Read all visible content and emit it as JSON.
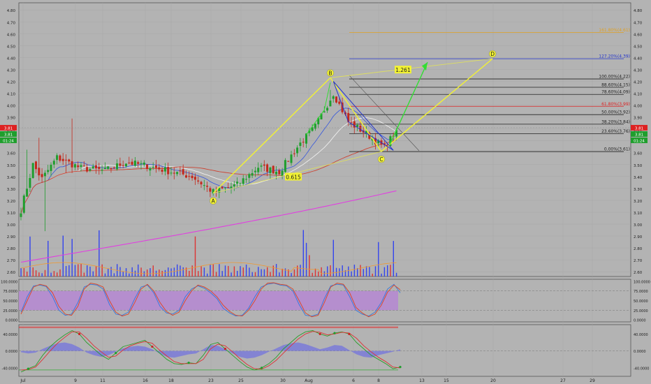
{
  "colors": {
    "background": "#b3b3b3",
    "up_candle": "#1f9e2d",
    "down_candle": "#c4281c",
    "fib_orange": "#e0a020",
    "fib_blue": "#2233cc",
    "fib_red": "#dd2222",
    "pattern_yellow": "#f2f233",
    "projection_green": "#33dd33",
    "ma_magenta": "#e040e0",
    "ma_red": "#cc4433",
    "ma_white": "#eeeeee",
    "stoch_band": "#b58ad0"
  },
  "chart_data": [
    {
      "type": "candlestick",
      "panel": "price",
      "y_ticks": [
        "4.80",
        "4.70",
        "4.60",
        "4.50",
        "4.40",
        "4.30",
        "4.20",
        "4.10",
        "4.00",
        "3.90",
        "3.80",
        "3.70",
        "3.60",
        "3.50",
        "3.40",
        "3.30",
        "3.20",
        "3.10",
        "3.00",
        "2.90",
        "2.80",
        "2.70",
        "2.60"
      ],
      "ylim": [
        2.56,
        4.86
      ],
      "x_ticks": [
        "Jul",
        "9",
        "11",
        "16",
        "18",
        "23",
        "25",
        "30",
        "Aug",
        "6",
        "8",
        "13",
        "15",
        "20",
        "27",
        "29"
      ],
      "price_labels": {
        "last": "3.81",
        "timer": "01:24"
      },
      "waypoints": [
        {
          "i": 0,
          "v": 3.12
        },
        {
          "i": 4,
          "v": 3.5
        },
        {
          "i": 7,
          "v": 3.38
        },
        {
          "i": 12,
          "v": 3.56
        },
        {
          "i": 20,
          "v": 3.47
        },
        {
          "i": 28,
          "v": 3.45
        },
        {
          "i": 35,
          "v": 3.52
        },
        {
          "i": 42,
          "v": 3.49
        },
        {
          "i": 50,
          "v": 3.44
        },
        {
          "i": 57,
          "v": 3.4
        },
        {
          "i": 64,
          "v": 3.27
        },
        {
          "i": 72,
          "v": 3.33
        },
        {
          "i": 79,
          "v": 3.48
        },
        {
          "i": 86,
          "v": 3.44
        },
        {
          "i": 93,
          "v": 3.68
        },
        {
          "i": 98,
          "v": 3.82
        },
        {
          "i": 104,
          "v": 4.1
        },
        {
          "i": 109,
          "v": 3.86
        },
        {
          "i": 115,
          "v": 3.76
        },
        {
          "i": 121,
          "v": 3.64
        },
        {
          "i": 125,
          "v": 3.79
        }
      ],
      "harmonic": {
        "points": [
          {
            "label": "A",
            "date_idx": 64,
            "value": 3.26
          },
          {
            "label": "B",
            "date_idx": 103,
            "value": 4.23
          },
          {
            "label": "C",
            "date_idx": 120,
            "value": 3.61
          },
          {
            "label": "D",
            "date_idx": 157,
            "value": 4.39
          }
        ],
        "ratios": [
          "0.615",
          "1.261"
        ]
      },
      "fib_levels": [
        {
          "label": "161.80%(4.61)",
          "value": 4.61,
          "color": "#e0a020"
        },
        {
          "label": "127.20%(4.39)",
          "value": 4.39,
          "color": "#2233cc"
        },
        {
          "label": "100.00%(4.22)",
          "value": 4.22,
          "color": "#222222"
        },
        {
          "label": "88.60%(4.15)",
          "value": 4.15,
          "color": "#222222"
        },
        {
          "label": "78.60%(4.09)",
          "value": 4.09,
          "color": "#222222"
        },
        {
          "label": "61.80%(3.99)",
          "value": 3.99,
          "color": "#dd2222"
        },
        {
          "label": "50.00%(3.92)",
          "value": 3.92,
          "color": "#222222"
        },
        {
          "label": "38.20%(3.84)",
          "value": 3.84,
          "color": "#222222"
        },
        {
          "label": "23.60%(3.76)",
          "value": 3.76,
          "color": "#222222"
        },
        {
          "label": "0.00%(3.61)",
          "value": 3.61,
          "color": "#222222"
        }
      ]
    },
    {
      "type": "line",
      "panel": "stochastic",
      "y_ticks": [
        "100.0000",
        "75.0000",
        "50.0000",
        "25.0000",
        "0.0000"
      ],
      "ylim": [
        -5,
        105
      ],
      "band": [
        25,
        75
      ],
      "series": [
        {
          "values": [
            20,
            60,
            88,
            90,
            86,
            60,
            25,
            12,
            15,
            45,
            85,
            92,
            90,
            80,
            40,
            15,
            12,
            20,
            55,
            85,
            90,
            70,
            35,
            18,
            15,
            25,
            60,
            80,
            88,
            82,
            70,
            55,
            30,
            18,
            10,
            12,
            30,
            60,
            85,
            92,
            95,
            90,
            88,
            75,
            40,
            12,
            10,
            15,
            55,
            88,
            92,
            90,
            60,
            25,
            15,
            10,
            20,
            45,
            80,
            92,
            70
          ]
        },
        {
          "values": [
            15,
            50,
            85,
            92,
            88,
            70,
            35,
            15,
            12,
            35,
            80,
            95,
            92,
            85,
            50,
            20,
            10,
            15,
            45,
            80,
            92,
            75,
            45,
            22,
            12,
            20,
            50,
            75,
            90,
            85,
            75,
            60,
            38,
            22,
            12,
            10,
            25,
            50,
            80,
            95,
            96,
            92,
            90,
            80,
            50,
            18,
            8,
            12,
            45,
            85,
            95,
            92,
            70,
            32,
            18,
            8,
            15,
            38,
            72,
            90,
            78
          ]
        }
      ]
    },
    {
      "type": "line",
      "panel": "oscillator",
      "y_ticks": [
        "40.0000",
        "0.0000",
        "-40.0000"
      ],
      "ylim": [
        -60,
        62
      ],
      "levels": [
        55,
        -45
      ],
      "series": [
        {
          "values": [
            -50,
            -42,
            -35,
            -10,
            10,
            25,
            38,
            48,
            40,
            20,
            5,
            -10,
            -20,
            -5,
            10,
            15,
            20,
            25,
            10,
            -5,
            -20,
            -30,
            -32,
            -28,
            -30,
            -10,
            15,
            20,
            5,
            -10,
            -25,
            -38,
            -45,
            -40,
            -30,
            -15,
            5,
            20,
            35,
            45,
            48,
            40,
            35,
            42,
            45,
            40,
            20,
            5,
            -10,
            -20,
            -30,
            -42,
            -38
          ]
        },
        {
          "values": [
            -45,
            -44,
            -38,
            -20,
            0,
            18,
            32,
            45,
            45,
            30,
            12,
            -2,
            -15,
            -12,
            2,
            12,
            18,
            22,
            18,
            2,
            -12,
            -25,
            -30,
            -30,
            -30,
            -20,
            5,
            16,
            12,
            -2,
            -18,
            -32,
            -42,
            -43,
            -35,
            -22,
            -5,
            12,
            28,
            40,
            46,
            44,
            38,
            40,
            44,
            42,
            30,
            12,
            -2,
            -15,
            -25,
            -38,
            -40
          ]
        },
        {
          "values": [
            -3,
            -6,
            -4,
            5,
            12,
            18,
            20,
            16,
            8,
            -4,
            -10,
            -14,
            -10,
            -2,
            6,
            10,
            12,
            10,
            4,
            -6,
            -14,
            -16,
            -12,
            -8,
            -6,
            4,
            14,
            12,
            4,
            -6,
            -14,
            -18,
            -16,
            -10,
            -2,
            6,
            14,
            18,
            20,
            16,
            10,
            4,
            8,
            14,
            12,
            2,
            -8,
            -14,
            -16,
            -10,
            -6,
            -2,
            4
          ]
        }
      ]
    }
  ]
}
